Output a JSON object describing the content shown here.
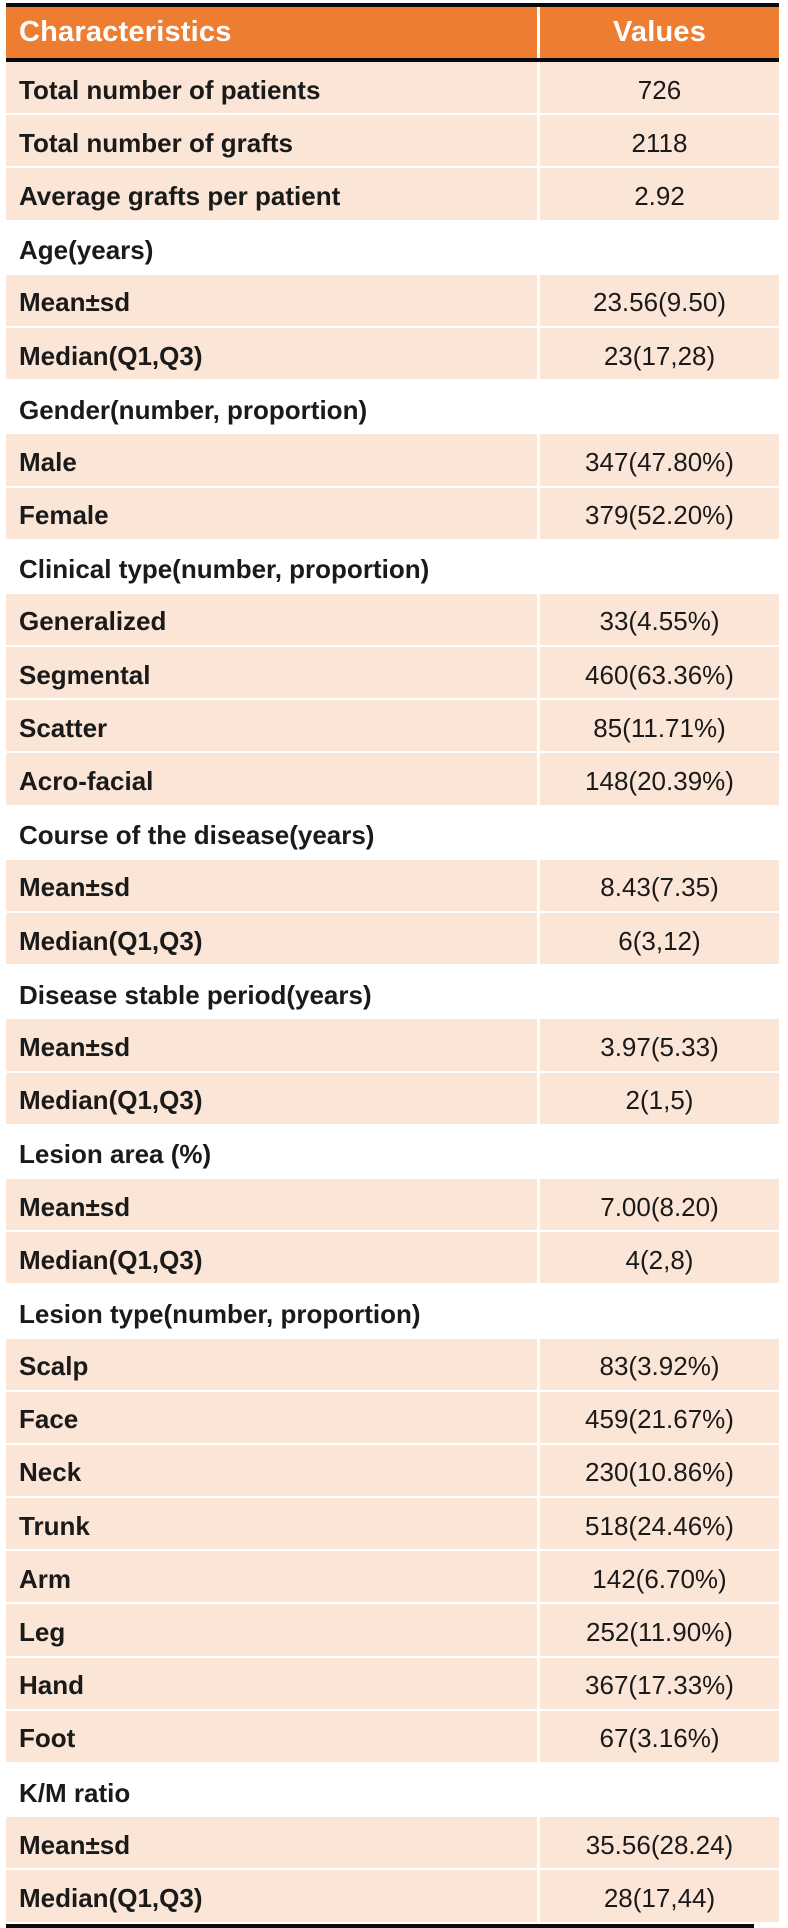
{
  "colors": {
    "header_bg": "#ED7D31",
    "header_text": "#FFFFFF",
    "data_row_bg": "#FBE5D6",
    "section_row_bg": "#FFFFFF",
    "body_text": "#1A1A1A",
    "border": "#0A0A0A"
  },
  "table": {
    "columns": [
      "Characteristics",
      "Values"
    ],
    "rows": [
      {
        "type": "data",
        "label": "Total number of patients",
        "value": "726"
      },
      {
        "type": "data",
        "label": "Total number of grafts",
        "value": "2118"
      },
      {
        "type": "data",
        "label": "Average grafts per patient",
        "value": "2.92"
      },
      {
        "type": "section",
        "label": "Age(years)"
      },
      {
        "type": "data",
        "label": "Mean±sd",
        "value": "23.56(9.50)"
      },
      {
        "type": "data",
        "label": "Median(Q1,Q3)",
        "value": "23(17,28)"
      },
      {
        "type": "section",
        "label": "Gender(number, proportion)"
      },
      {
        "type": "data",
        "label": "Male",
        "value": "347(47.80%)"
      },
      {
        "type": "data",
        "label": "Female",
        "value": "379(52.20%)"
      },
      {
        "type": "section",
        "label": "Clinical type(number, proportion)"
      },
      {
        "type": "data",
        "label": "Generalized",
        "value": "33(4.55%)"
      },
      {
        "type": "data",
        "label": "Segmental",
        "value": "460(63.36%)"
      },
      {
        "type": "data",
        "label": "Scatter",
        "value": "85(11.71%)"
      },
      {
        "type": "data",
        "label": "Acro-facial",
        "value": "148(20.39%)"
      },
      {
        "type": "section",
        "label": "Course of the disease(years)"
      },
      {
        "type": "data",
        "label": "Mean±sd",
        "value": "8.43(7.35)"
      },
      {
        "type": "data",
        "label": "Median(Q1,Q3)",
        "value": "6(3,12)"
      },
      {
        "type": "section",
        "label": "Disease stable period(years)"
      },
      {
        "type": "data",
        "label": "Mean±sd",
        "value": "3.97(5.33)"
      },
      {
        "type": "data",
        "label": "Median(Q1,Q3)",
        "value": "2(1,5)"
      },
      {
        "type": "section",
        "label": "Lesion area (%)"
      },
      {
        "type": "data",
        "label": "Mean±sd",
        "value": "7.00(8.20)"
      },
      {
        "type": "data",
        "label": "Median(Q1,Q3)",
        "value": "4(2,8)"
      },
      {
        "type": "section",
        "label": "Lesion type(number, proportion)"
      },
      {
        "type": "data",
        "label": "Scalp",
        "value": "83(3.92%)"
      },
      {
        "type": "data",
        "label": "Face",
        "value": "459(21.67%)"
      },
      {
        "type": "data",
        "label": "Neck",
        "value": "230(10.86%)"
      },
      {
        "type": "data",
        "label": "Trunk",
        "value": "518(24.46%)"
      },
      {
        "type": "data",
        "label": "Arm",
        "value": "142(6.70%)"
      },
      {
        "type": "data",
        "label": "Leg",
        "value": "252(11.90%)"
      },
      {
        "type": "data",
        "label": "Hand",
        "value": "367(17.33%)"
      },
      {
        "type": "data",
        "label": "Foot",
        "value": "67(3.16%)"
      },
      {
        "type": "section",
        "label": "K/M ratio"
      },
      {
        "type": "data",
        "label": "Mean±sd",
        "value": "35.56(28.24)"
      },
      {
        "type": "data",
        "label": "Median(Q1,Q3)",
        "value": "28(17,44)"
      }
    ]
  }
}
